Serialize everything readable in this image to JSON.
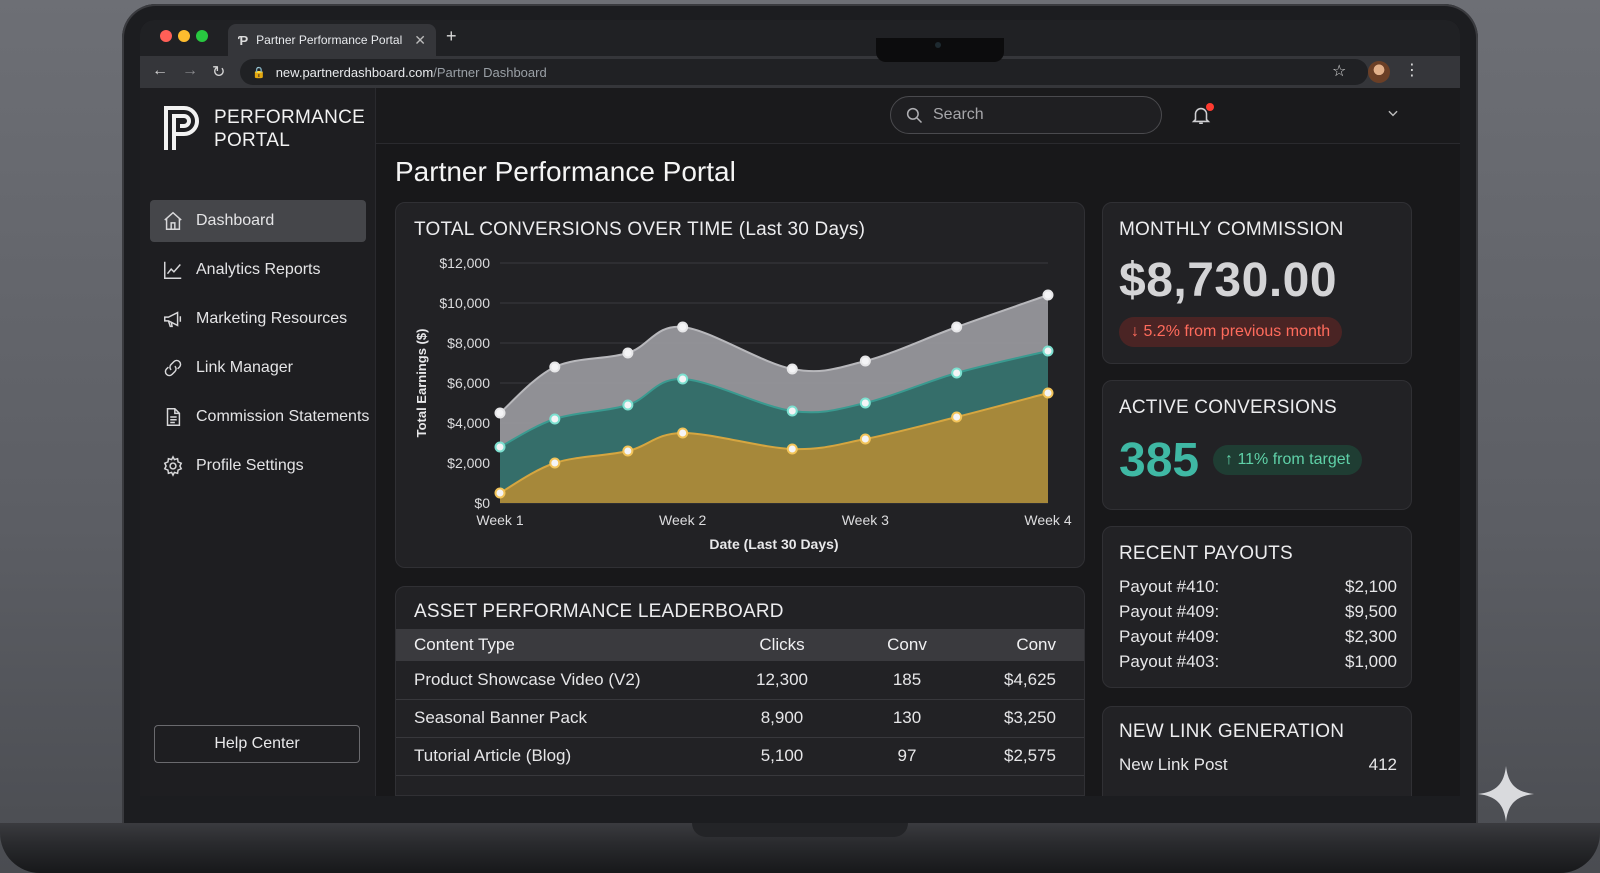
{
  "browser": {
    "tab_title": "Partner Performance Portal",
    "new_tab": "+",
    "url_host": "new.partnerdashboard.com",
    "url_path": "/Partner Dashboard"
  },
  "brand": {
    "line1": "PERFORMANCE",
    "line2": "PORTAL"
  },
  "sidebar": {
    "items": [
      {
        "label": "Dashboard",
        "icon": "home-icon",
        "active": true
      },
      {
        "label": "Analytics Reports",
        "icon": "chart-line-icon"
      },
      {
        "label": "Marketing Resources",
        "icon": "megaphone-icon"
      },
      {
        "label": "Link Manager",
        "icon": "link-icon"
      },
      {
        "label": "Commission Statements",
        "icon": "document-icon"
      },
      {
        "label": "Profile Settings",
        "icon": "gear-icon"
      }
    ],
    "help_label": "Help Center"
  },
  "topbar": {
    "search_placeholder": "Search"
  },
  "page_title": "Partner Performance Portal",
  "chart_card": {
    "title": "TOTAL CONVERSIONS OVER TIME (Last 30 Days)"
  },
  "chart_data": {
    "type": "area",
    "title": "TOTAL CONVERSIONS OVER TIME (Last 30 Days)",
    "xlabel": "Date (Last 30 Days)",
    "ylabel": "Total Earnings ($)",
    "x_ticks": [
      "Week 1",
      "Week 2",
      "Week 3",
      "Week 4"
    ],
    "y_ticks": [
      "$0",
      "$2,000",
      "$4,000",
      "$6,000",
      "$8,000",
      "$10,000",
      "$12,000"
    ],
    "ylim": [
      0,
      12000
    ],
    "x": [
      1,
      1.3,
      1.7,
      2,
      2.6,
      3,
      3.5,
      4
    ],
    "grid": true,
    "stacked": false,
    "series": [
      {
        "color": "#9a9a9e",
        "values": [
          4500,
          6800,
          7500,
          8800,
          6700,
          7100,
          8800,
          10400
        ]
      },
      {
        "color": "#2e6b66",
        "values": [
          2800,
          4200,
          4900,
          6200,
          4600,
          5000,
          6500,
          7600
        ]
      },
      {
        "color": "#b08a36",
        "values": [
          500,
          2000,
          2600,
          3500,
          2700,
          3200,
          4300,
          5500
        ]
      }
    ]
  },
  "leaderboard": {
    "title": "ASSET PERFORMANCE LEADERBOARD",
    "headers": [
      "Content Type",
      "Clicks",
      "Conv",
      "Conv"
    ],
    "rows": [
      [
        "Product Showcase Video (V2)",
        "12,300",
        "185",
        "$4,625"
      ],
      [
        "Seasonal Banner Pack",
        "8,900",
        "130",
        "$3,250"
      ],
      [
        "Tutorial Article (Blog)",
        "5,100",
        "97",
        "$2,575"
      ]
    ]
  },
  "monthly_commission": {
    "title": "MONTHLY COMMISSION",
    "amount": "$8,730.00",
    "change": "↓ 5.2% from previous month",
    "change_color": "#ff6b5c"
  },
  "active_conversions": {
    "title": "ACTIVE CONVERSIONS",
    "count": "385",
    "change": "↑ 11% from target",
    "count_color": "#3fb8a4"
  },
  "recent_payouts": {
    "title": "RECENT PAYOUTS",
    "rows": [
      {
        "label": "Payout #410:",
        "amount": "$2,100"
      },
      {
        "label": "Payout #409:",
        "amount": "$9,500"
      },
      {
        "label": "Payout #409:",
        "amount": "$2,300"
      },
      {
        "label": "Payout #403:",
        "amount": "$1,000"
      }
    ]
  },
  "new_link": {
    "title": "NEW LINK GENERATION",
    "label": "New Link Post",
    "value": "412"
  }
}
